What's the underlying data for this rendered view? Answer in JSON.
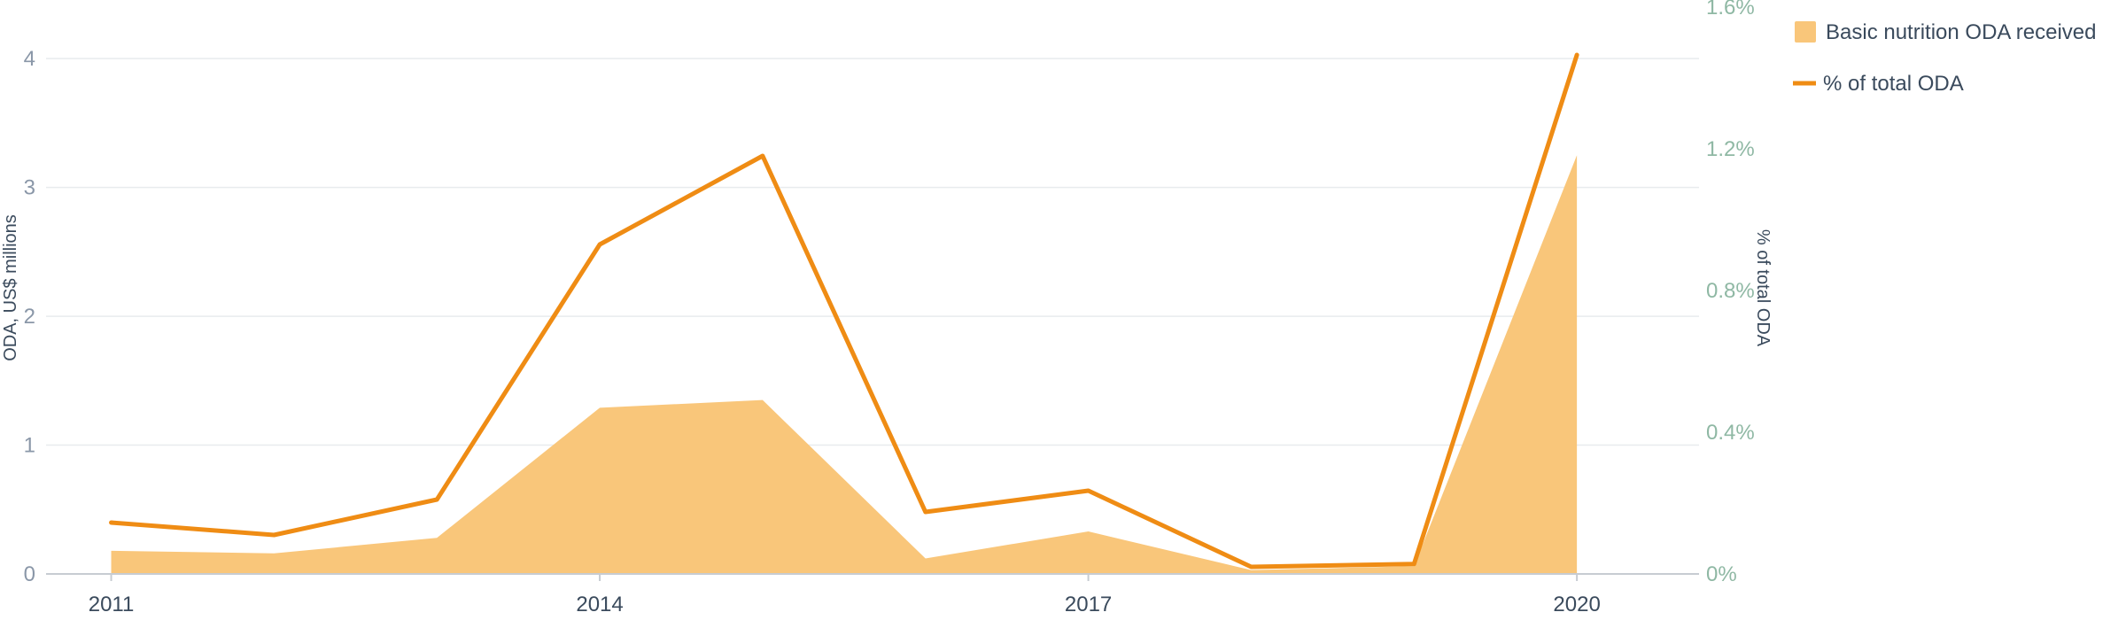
{
  "chart_data": {
    "type": "area",
    "x": [
      2011,
      2012,
      2013,
      2014,
      2015,
      2016,
      2017,
      2018,
      2019,
      2020
    ],
    "x_tick_labels": [
      "2011",
      "2014",
      "2017",
      "2020"
    ],
    "x_tick_values": [
      2011,
      2014,
      2017,
      2020
    ],
    "series": [
      {
        "name": "Basic nutrition ODA received",
        "kind": "area",
        "axis": "left",
        "color": "#f9c67a",
        "values": [
          0.18,
          0.16,
          0.28,
          1.29,
          1.35,
          0.12,
          0.33,
          0.03,
          0.06,
          3.25
        ]
      },
      {
        "name": "% of total ODA",
        "kind": "line",
        "axis": "right",
        "color": "#ef8c14",
        "values": [
          0.145,
          0.11,
          0.21,
          0.93,
          1.18,
          0.175,
          0.235,
          0.02,
          0.028,
          1.465
        ]
      }
    ],
    "y_left": {
      "label": "ODA, US$ millions",
      "ticks": [
        "0",
        "1",
        "2",
        "3",
        "4"
      ],
      "tick_values": [
        0,
        1,
        2,
        3,
        4
      ],
      "range": [
        0,
        4.4
      ]
    },
    "y_right": {
      "label": "% of total ODA",
      "ticks": [
        "0%",
        "0.4%",
        "0.8%",
        "1.2%",
        "1.6%"
      ],
      "tick_values": [
        0,
        0.4,
        0.8,
        1.2,
        1.6
      ],
      "range": [
        0,
        1.6
      ]
    },
    "grid": true,
    "legend_position": "top-right"
  },
  "colors": {
    "grid": "#e8ebee",
    "axis": "#c7ccd2"
  }
}
